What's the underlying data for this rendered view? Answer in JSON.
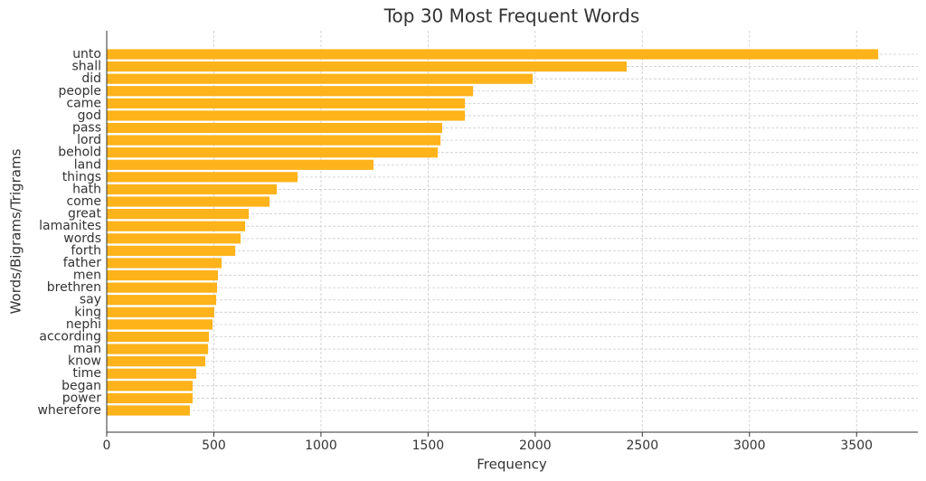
{
  "chart_data": {
    "type": "barh",
    "title": "Top 30 Most Frequent Words",
    "x_label": "Frequency",
    "y_label": "Words/Bigrams/Trigrams",
    "categories": [
      "unto",
      "shall",
      "did",
      "people",
      "came",
      "god",
      "pass",
      "lord",
      "behold",
      "land",
      "things",
      "hath",
      "come",
      "great",
      "lamanites",
      "words",
      "forth",
      "father",
      "men",
      "brethren",
      "say",
      "king",
      "nephi",
      "according",
      "man",
      "know",
      "time",
      "began",
      "power",
      "wherefore"
    ],
    "values": [
      3601,
      2427,
      1988,
      1710,
      1672,
      1672,
      1566,
      1558,
      1545,
      1245,
      891,
      794,
      760,
      663,
      646,
      625,
      600,
      536,
      519,
      515,
      511,
      502,
      494,
      477,
      473,
      460,
      418,
      401,
      401,
      388
    ],
    "color": "#ffb31a",
    "xlim": [
      0,
      3786
    ],
    "xticks": [
      0,
      500,
      1000,
      1500,
      2000,
      2500,
      3000,
      3500
    ],
    "grid": true
  }
}
